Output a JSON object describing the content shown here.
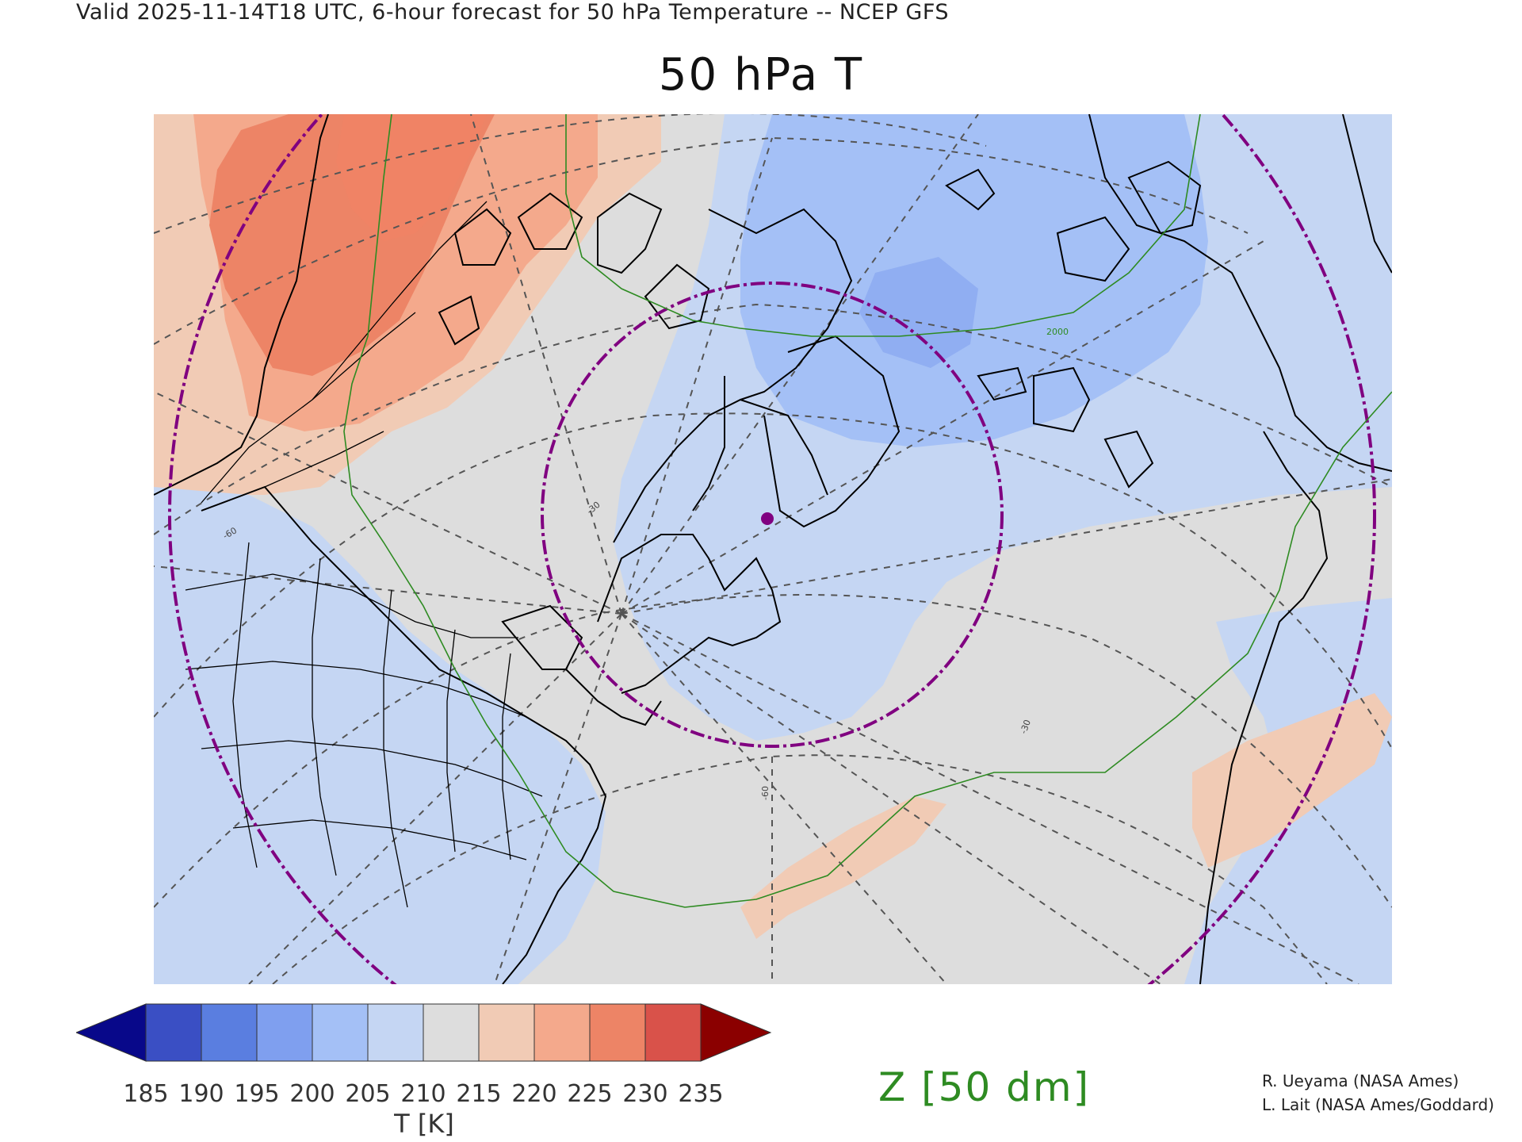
{
  "header": {
    "valid_line": "Valid 2025-11-14T18 UTC, 6-hour forecast for 50 hPa Temperature -- NCEP GFS",
    "title": "50 hPa T"
  },
  "colorbar": {
    "ticks": [
      "185",
      "190",
      "195",
      "200",
      "205",
      "210",
      "215",
      "220",
      "225",
      "230",
      "235"
    ],
    "unit_label": "T [K]",
    "colors": [
      "#08088a",
      "#3a4fc4",
      "#5a7ee0",
      "#7f9fef",
      "#a4c0f6",
      "#c5d6f3",
      "#dddddd",
      "#f1cbb5",
      "#f4a98c",
      "#ed8466",
      "#d9524a",
      "#990000"
    ],
    "under_color": "#08088a",
    "over_color": "#8b0000"
  },
  "contour_legend": {
    "label": "Z [50 dm]",
    "color": "#2e8b22"
  },
  "map": {
    "contour_labels": [
      "2000"
    ],
    "graticule_labels": [
      "-60",
      "-30",
      "-60",
      "-30"
    ],
    "marker_color": "#800080",
    "circle_color": "#800080",
    "coast_color": "#000000",
    "graticule_color": "#555555"
  },
  "credits": [
    "R. Ueyama (NASA Ames)",
    "L. Lait (NASA Ames/Goddard)"
  ]
}
